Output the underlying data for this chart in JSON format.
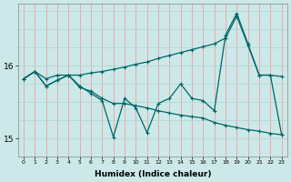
{
  "title": "",
  "xlabel": "Humidex (Indice chaleur)",
  "bg_color": "#cce8e8",
  "line_color": "#006666",
  "grid_color_v": "#f0a0a0",
  "grid_color_h": "#b0d8d8",
  "xlim": [
    -0.5,
    23.5
  ],
  "ylim": [
    14.75,
    16.85
  ],
  "yticks": [
    15,
    16
  ],
  "xticks": [
    0,
    1,
    2,
    3,
    4,
    5,
    6,
    7,
    8,
    9,
    10,
    11,
    12,
    13,
    14,
    15,
    16,
    17,
    18,
    19,
    20,
    21,
    22,
    23
  ],
  "line1_x": [
    0,
    1,
    2,
    3,
    4,
    5,
    6,
    7,
    8,
    9,
    10,
    11,
    12,
    13,
    14,
    15,
    16,
    17,
    18,
    19,
    20,
    21,
    22,
    23
  ],
  "line1_y": [
    15.82,
    15.92,
    15.82,
    15.87,
    15.87,
    15.87,
    15.9,
    15.92,
    15.95,
    15.98,
    16.02,
    16.05,
    16.1,
    16.14,
    16.18,
    16.22,
    16.26,
    16.3,
    16.38,
    16.68,
    16.28,
    15.87,
    15.87,
    15.85
  ],
  "line2_x": [
    0,
    1,
    2,
    3,
    4,
    5,
    6,
    7,
    8,
    9,
    10,
    11,
    12,
    13,
    14,
    15,
    16,
    17,
    18,
    19,
    20,
    21,
    22,
    23
  ],
  "line2_y": [
    15.82,
    15.92,
    15.72,
    15.8,
    15.87,
    15.72,
    15.62,
    15.52,
    15.02,
    15.55,
    15.42,
    15.08,
    15.48,
    15.55,
    15.75,
    15.55,
    15.52,
    15.38,
    16.42,
    16.72,
    16.3,
    15.87,
    15.87,
    15.05
  ],
  "line3_x": [
    0,
    1,
    2,
    3,
    4,
    5,
    6,
    7,
    8,
    9,
    10,
    11,
    12,
    13,
    14,
    15,
    16,
    17,
    18,
    19,
    20,
    21,
    22,
    23
  ],
  "line3_y": [
    15.82,
    15.92,
    15.72,
    15.8,
    15.87,
    15.7,
    15.65,
    15.55,
    15.48,
    15.48,
    15.45,
    15.42,
    15.38,
    15.35,
    15.32,
    15.3,
    15.28,
    15.22,
    15.18,
    15.15,
    15.12,
    15.1,
    15.07,
    15.05
  ]
}
